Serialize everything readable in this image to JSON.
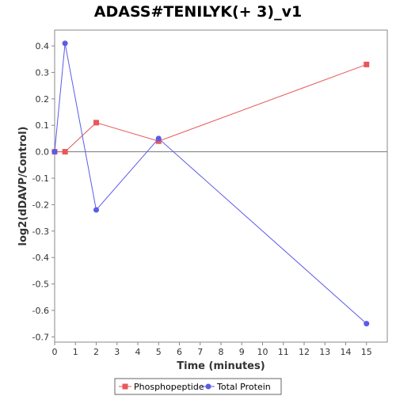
{
  "chart_data": {
    "type": "line",
    "title": "ADASS#TENILYK(+ 3)_v1",
    "xlabel": "Time (minutes)",
    "ylabel": "log2(dDAVP/Control)",
    "xlim": [
      0,
      16
    ],
    "ylim": [
      -0.72,
      0.46
    ],
    "x_ticks": [
      0,
      1,
      2,
      3,
      4,
      5,
      6,
      7,
      8,
      9,
      10,
      11,
      12,
      13,
      14,
      15
    ],
    "y_ticks": [
      -0.7,
      -0.6,
      -0.5,
      -0.4,
      -0.3,
      -0.2,
      -0.1,
      0.0,
      0.1,
      0.2,
      0.3,
      0.4
    ],
    "x_tick_labels": [
      "0",
      "1",
      "2",
      "3",
      "4",
      "5",
      "6",
      "7",
      "8",
      "9",
      "10",
      "11",
      "12",
      "13",
      "14",
      "15"
    ],
    "y_tick_labels": [
      "-0.7",
      "-0.6",
      "-0.5",
      "-0.4",
      "-0.3",
      "-0.2",
      "-0.1",
      "0.0",
      "0.1",
      "0.2",
      "0.3",
      "0.4"
    ],
    "baseline": 0,
    "grid": false,
    "legend_position": "bottom",
    "series": [
      {
        "name": "Phosphopeptide",
        "color": "#e8575a",
        "marker": "square",
        "x": [
          0,
          0.5,
          2,
          5,
          15
        ],
        "y": [
          0.0,
          0.0,
          0.11,
          0.04,
          0.33
        ]
      },
      {
        "name": "Total Protein",
        "color": "#5b5be8",
        "marker": "circle",
        "x": [
          0,
          0.5,
          2,
          5,
          15
        ],
        "y": [
          0.0,
          0.41,
          -0.22,
          0.05,
          -0.65
        ]
      }
    ]
  }
}
